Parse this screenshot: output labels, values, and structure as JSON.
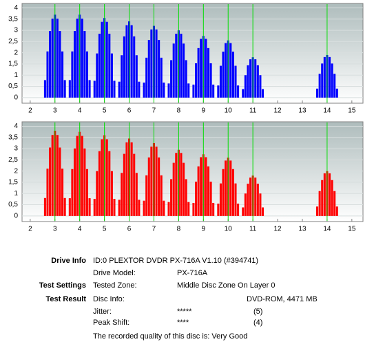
{
  "chart_data": [
    {
      "type": "bar",
      "color": "#0000ff",
      "grid": true,
      "xlim": [
        1.67,
        15.45
      ],
      "ylim": [
        -0.25,
        4.2
      ],
      "xticks": [
        2,
        3,
        4,
        5,
        6,
        7,
        8,
        9,
        10,
        11,
        12,
        13,
        14,
        15
      ],
      "yticks": [
        0,
        {
          "value": 0.5,
          "label": "0,5"
        },
        1,
        {
          "value": 1.5,
          "label": "1,5"
        },
        2,
        {
          "value": 2.5,
          "label": "2,5"
        },
        3,
        {
          "value": 3.5,
          "label": "3,5"
        },
        4
      ],
      "reference_lines": [
        3,
        4,
        5,
        6,
        7,
        8,
        9,
        10,
        11,
        14
      ],
      "reference_color": "#00dd00",
      "x": [
        2.6,
        2.7,
        2.8,
        2.9,
        3,
        3.1,
        3.2,
        3.3,
        3.4,
        3.6,
        3.7,
        3.8,
        3.9,
        4,
        4.1,
        4.2,
        4.3,
        4.4,
        4.6,
        4.7,
        4.8,
        4.9,
        5,
        5.1,
        5.2,
        5.3,
        5.4,
        5.6,
        5.7,
        5.8,
        5.9,
        6,
        6.1,
        6.2,
        6.3,
        6.4,
        6.6,
        6.7,
        6.8,
        6.9,
        7,
        7.1,
        7.2,
        7.3,
        7.4,
        7.6,
        7.7,
        7.8,
        7.9,
        8,
        8.1,
        8.2,
        8.3,
        8.4,
        8.6,
        8.7,
        8.8,
        8.9,
        9,
        9.1,
        9.2,
        9.3,
        9.4,
        9.6,
        9.7,
        9.8,
        9.9,
        10,
        10.1,
        10.2,
        10.3,
        10.4,
        10.6,
        10.7,
        10.8,
        10.9,
        11,
        11.1,
        11.2,
        11.3,
        11.4,
        13.6,
        13.7,
        13.8,
        13.9,
        14,
        14.1,
        14.2,
        14.3,
        14.4
      ],
      "values": [
        0.78,
        2.06,
        2.97,
        3.52,
        3.7,
        3.52,
        2.97,
        2.06,
        0.78,
        0.78,
        2.06,
        2.97,
        3.52,
        3.7,
        3.52,
        2.97,
        2.06,
        0.78,
        0.75,
        1.97,
        2.85,
        3.38,
        3.55,
        3.38,
        2.85,
        1.97,
        0.75,
        0.71,
        1.89,
        2.73,
        3.23,
        3.4,
        3.23,
        2.73,
        1.89,
        0.71,
        0.67,
        1.78,
        2.57,
        3.04,
        3.2,
        3.04,
        2.57,
        1.78,
        0.67,
        0.63,
        1.67,
        2.41,
        2.85,
        3.0,
        2.85,
        2.41,
        1.67,
        0.63,
        0.58,
        1.53,
        2.21,
        2.62,
        2.75,
        2.62,
        2.21,
        1.53,
        0.58,
        0.54,
        1.42,
        2.05,
        2.43,
        2.55,
        2.43,
        2.05,
        1.42,
        0.54,
        0.38,
        1.0,
        1.44,
        1.71,
        1.8,
        1.71,
        1.44,
        1.0,
        0.38,
        0.4,
        1.06,
        1.52,
        1.81,
        1.9,
        1.81,
        1.52,
        1.06,
        0.4
      ]
    },
    {
      "type": "bar",
      "color": "#ff0000",
      "grid": true,
      "xlim": [
        1.67,
        15.45
      ],
      "ylim": [
        -0.25,
        4.2
      ],
      "xticks": [
        2,
        3,
        4,
        5,
        6,
        7,
        8,
        9,
        10,
        11,
        12,
        13,
        14,
        15
      ],
      "yticks": [
        0,
        {
          "value": 0.5,
          "label": "0,5"
        },
        1,
        {
          "value": 1.5,
          "label": "1,5"
        },
        2,
        {
          "value": 2.5,
          "label": "2,5"
        },
        3,
        {
          "value": 3.5,
          "label": "3,5"
        },
        4
      ],
      "reference_lines": [
        3,
        4,
        5,
        6,
        7,
        8,
        9,
        10,
        11,
        14
      ],
      "reference_color": "#00dd00",
      "x": [
        2.6,
        2.7,
        2.8,
        2.9,
        3,
        3.1,
        3.2,
        3.3,
        3.4,
        3.6,
        3.7,
        3.8,
        3.9,
        4,
        4.1,
        4.2,
        4.3,
        4.4,
        4.6,
        4.7,
        4.8,
        4.9,
        5,
        5.1,
        5.2,
        5.3,
        5.4,
        5.6,
        5.7,
        5.8,
        5.9,
        6,
        6.1,
        6.2,
        6.3,
        6.4,
        6.6,
        6.7,
        6.8,
        6.9,
        7,
        7.1,
        7.2,
        7.3,
        7.4,
        7.6,
        7.7,
        7.8,
        7.9,
        8,
        8.1,
        8.2,
        8.3,
        8.4,
        8.6,
        8.7,
        8.8,
        8.9,
        9,
        9.1,
        9.2,
        9.3,
        9.4,
        9.6,
        9.7,
        9.8,
        9.9,
        10,
        10.1,
        10.2,
        10.3,
        10.4,
        10.6,
        10.7,
        10.8,
        10.9,
        11,
        11.1,
        11.2,
        11.3,
        11.4,
        13.6,
        13.7,
        13.8,
        13.9,
        14,
        14.1,
        14.2,
        14.3,
        14.4
      ],
      "values": [
        0.8,
        2.11,
        3.05,
        3.61,
        3.8,
        3.61,
        3.05,
        2.11,
        0.8,
        0.79,
        2.09,
        3.01,
        3.57,
        3.75,
        3.57,
        3.01,
        2.09,
        0.79,
        0.76,
        2.0,
        2.89,
        3.42,
        3.6,
        3.42,
        2.89,
        2.0,
        0.76,
        0.72,
        1.92,
        2.77,
        3.28,
        3.45,
        3.28,
        2.77,
        1.92,
        0.72,
        0.68,
        1.81,
        2.61,
        3.09,
        3.25,
        3.09,
        2.61,
        1.81,
        0.68,
        0.62,
        1.64,
        2.37,
        2.81,
        2.95,
        2.81,
        2.37,
        1.64,
        0.62,
        0.58,
        1.53,
        2.21,
        2.62,
        2.75,
        2.62,
        2.21,
        1.53,
        0.58,
        0.55,
        1.45,
        2.09,
        2.47,
        2.6,
        2.47,
        2.09,
        1.45,
        0.55,
        0.38,
        1.0,
        1.44,
        1.71,
        1.8,
        1.71,
        1.44,
        1.0,
        0.38,
        0.42,
        1.11,
        1.6,
        1.9,
        2.0,
        1.9,
        1.6,
        1.11,
        0.42
      ]
    }
  ],
  "report": {
    "drive_info": {
      "heading": "Drive Info",
      "text": "ID:0 PLEXTOR DVDR PX-716A V1.10 (#394741)"
    },
    "drive_model": {
      "label": "Drive Model:",
      "value": "PX-716A"
    },
    "test_settings": {
      "heading": "Test Settings",
      "label": "Tested Zone:",
      "value": "Middle Disc Zone On Layer 0"
    },
    "test_result": {
      "heading": "Test Result",
      "label": "Disc Info:",
      "value": "DVD-ROM, 4471 MB"
    },
    "jitter": {
      "label": "Jitter:",
      "stars": "*****",
      "score": "(5)"
    },
    "peak_shift": {
      "label": "Peak Shift:",
      "stars": "****",
      "score": "(4)"
    },
    "quality": "The recorded quality of this disc is: Very Good"
  }
}
